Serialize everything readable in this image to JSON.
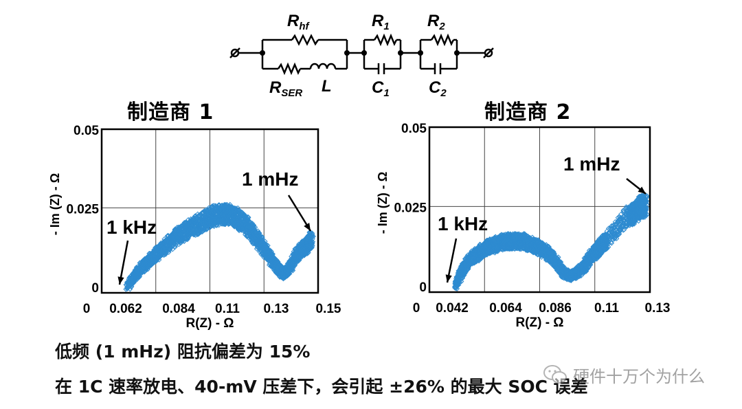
{
  "circuit": {
    "labels": {
      "rhf": "R",
      "rhf_sub": "hf",
      "rser": "R",
      "rser_sub": "SER",
      "l": "L",
      "r1": "R",
      "r1_sub": "1",
      "c1": "C",
      "c1_sub": "1",
      "r2": "R",
      "r2_sub": "2",
      "c2": "C",
      "c2_sub": "2"
    }
  },
  "chart_data": [
    {
      "type": "scatter",
      "title": "制造商 1",
      "xlabel": "R(Z) - Ω",
      "ylabel": "- Im (Z) - Ω",
      "xlim": [
        0.05,
        0.15
      ],
      "ylim": [
        -0.002,
        0.05
      ],
      "x_tick_labels": [
        "0",
        "0.062",
        "0.084",
        "0.11",
        "0.13",
        "0.15"
      ],
      "y_tick_labels": [
        "0",
        "0.025",
        "0.05"
      ],
      "grid": true,
      "marker": "open-diamond",
      "color": "#2e8bd0",
      "annotations": [
        {
          "text": "1 kHz",
          "x": 0.062,
          "y": 0.0
        },
        {
          "text": "1 mHz",
          "x": 0.147,
          "y": 0.016
        }
      ],
      "series": [
        {
          "x": [
            0.062,
            0.066,
            0.07,
            0.075,
            0.08,
            0.085,
            0.09,
            0.095,
            0.1,
            0.105,
            0.108,
            0.112,
            0.116,
            0.12,
            0.124,
            0.128,
            0.131,
            0.134,
            0.137,
            0.14,
            0.143,
            0.145,
            0.147
          ],
          "y": [
            0.0,
            0.004,
            0.007,
            0.01,
            0.013,
            0.016,
            0.018,
            0.02,
            0.022,
            0.023,
            0.023,
            0.022,
            0.02,
            0.017,
            0.013,
            0.009,
            0.006,
            0.004,
            0.006,
            0.01,
            0.012,
            0.013,
            0.015
          ]
        }
      ]
    },
    {
      "type": "scatter",
      "title": "制造商 2",
      "xlabel": "R(Z) - Ω",
      "ylabel": "- Im (Z) - Ω",
      "xlim": [
        0.03,
        0.13
      ],
      "ylim": [
        -0.002,
        0.05
      ],
      "x_tick_labels": [
        "0",
        "0.042",
        "0.064",
        "0.086",
        "0.11",
        "0.13"
      ],
      "y_tick_labels": [
        "0",
        "0.025",
        "0.05"
      ],
      "grid": true,
      "marker": "open-diamond",
      "color": "#2e8bd0",
      "annotations": [
        {
          "text": "1 kHz",
          "x": 0.042,
          "y": 0.0
        },
        {
          "text": "1 mHz",
          "x": 0.128,
          "y": 0.025
        }
      ],
      "series": [
        {
          "x": [
            0.042,
            0.045,
            0.048,
            0.052,
            0.056,
            0.06,
            0.064,
            0.068,
            0.072,
            0.076,
            0.08,
            0.084,
            0.088,
            0.091,
            0.094,
            0.097,
            0.1,
            0.103,
            0.106,
            0.108,
            0.11,
            0.12,
            0.123,
            0.126,
            0.128
          ],
          "y": [
            0.0,
            0.005,
            0.008,
            0.01,
            0.012,
            0.013,
            0.014,
            0.014,
            0.014,
            0.013,
            0.012,
            0.01,
            0.007,
            0.004,
            0.003,
            0.004,
            0.006,
            0.009,
            0.011,
            0.013,
            0.014,
            0.022,
            0.023,
            0.025,
            0.025
          ]
        }
      ]
    }
  ],
  "captions": {
    "line1": "低频 (1 mHz) 阻抗偏差为 15%",
    "line2": "在 1C 速率放电、40-mV 压差下，会引起 ±26% 的最大 SOC 误差"
  },
  "watermark": {
    "icon": "wechat-icon",
    "text": "硬件十万个为什么"
  }
}
